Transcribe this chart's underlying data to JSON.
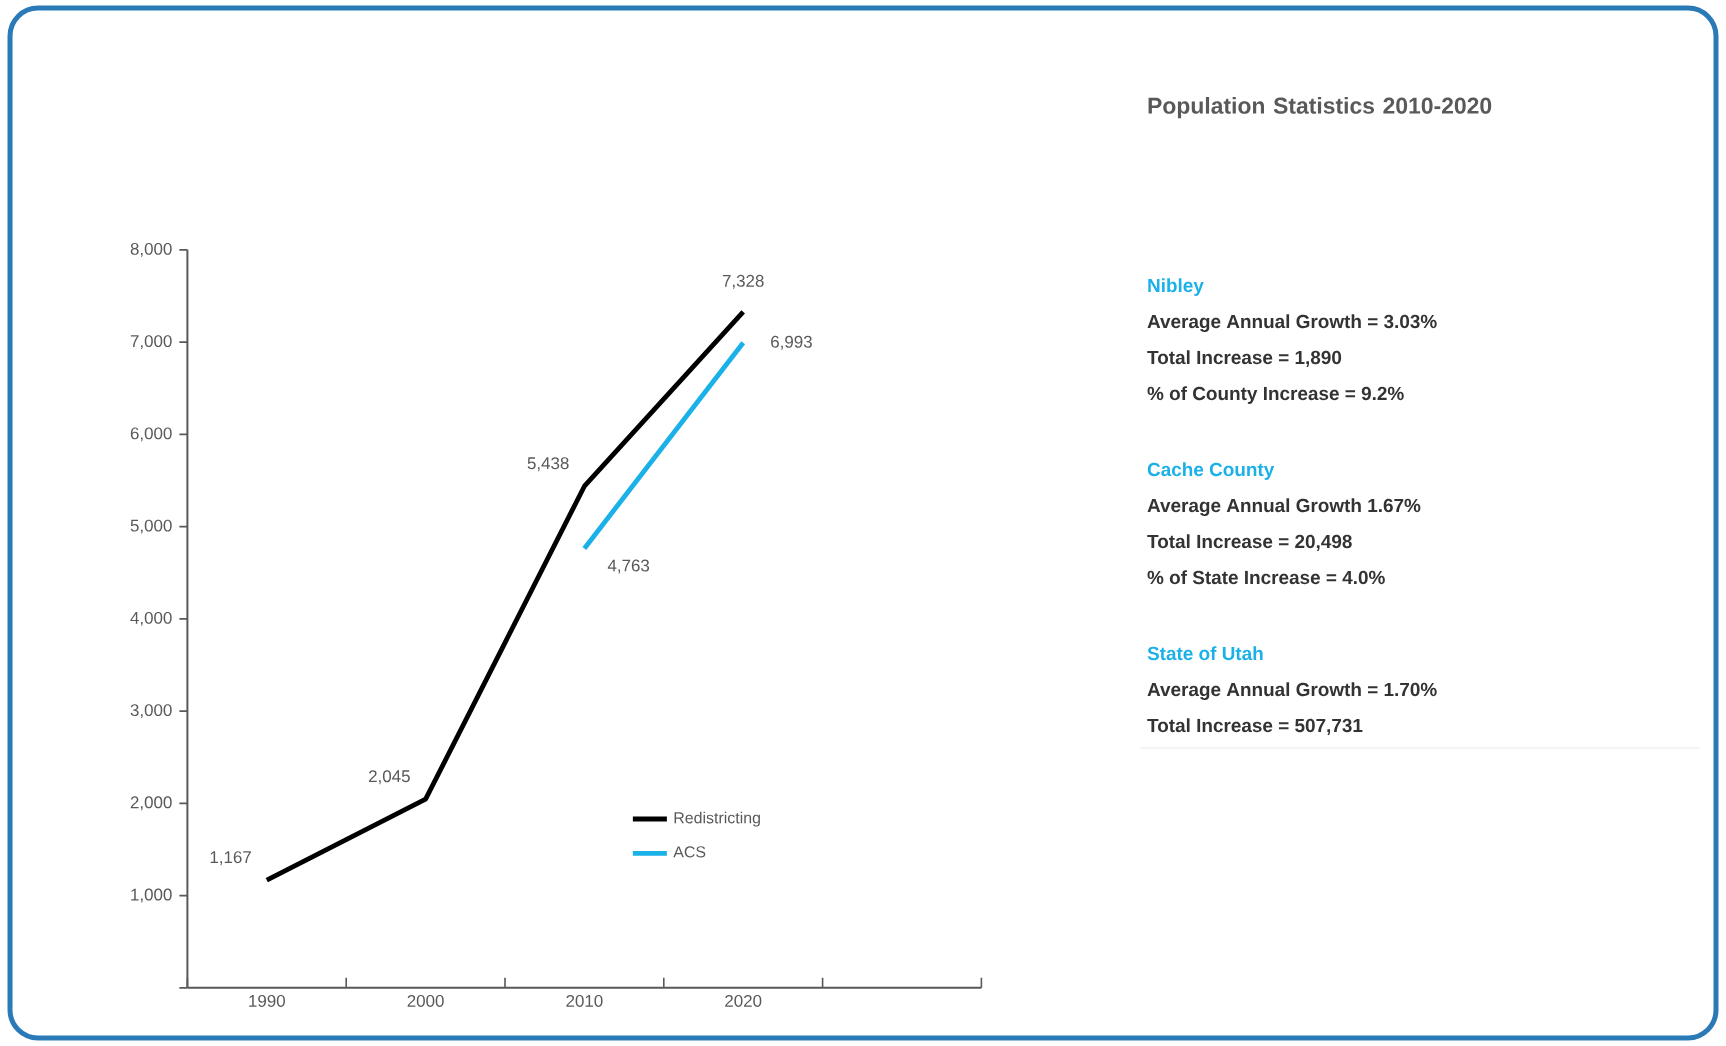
{
  "chart_data": {
    "type": "line",
    "title": "Population Statistics 2010-2020",
    "categories": [
      "1990",
      "2000",
      "2010",
      "2020",
      null
    ],
    "series": [
      {
        "name": "Redistricting",
        "color": "#000000",
        "values": [
          1167,
          2045,
          5438,
          7328,
          null
        ],
        "value_labels": [
          "1,167",
          "2,045",
          "5,438",
          "7,328",
          null
        ]
      },
      {
        "name": "ACS",
        "color": "#1ab0e8",
        "values": [
          null,
          null,
          4763,
          6993,
          null
        ],
        "value_labels": [
          null,
          null,
          "4,763",
          "6,993",
          null
        ]
      }
    ],
    "ylim": [
      0,
      8000
    ],
    "yticks": [
      {
        "value": 0,
        "label": null
      },
      {
        "value": 1000,
        "label": "1,000"
      },
      {
        "value": 2000,
        "label": "2,000"
      },
      {
        "value": 3000,
        "label": "3,000"
      },
      {
        "value": 4000,
        "label": "4,000"
      },
      {
        "value": 5000,
        "label": "5,000"
      },
      {
        "value": 6000,
        "label": "6,000"
      },
      {
        "value": 7000,
        "label": "7,000"
      },
      {
        "value": 8000,
        "label": "8,000"
      }
    ],
    "grid": false,
    "legend": "bottom right",
    "marker": "none",
    "line_style": "solid",
    "annotations": [
      "Nibley",
      "Average Annual Growth = 3.03%",
      "Total Increase = 1,890",
      "% of County Increase = 9.2%",
      "Cache County",
      "Average Annual Growth 1.67%",
      "Total Increase = 20,498",
      "% of State Increase = 4.0%",
      "State of Utah",
      "Average Annual Growth = 1.70%",
      "Total Increase = 507,731"
    ]
  }
}
